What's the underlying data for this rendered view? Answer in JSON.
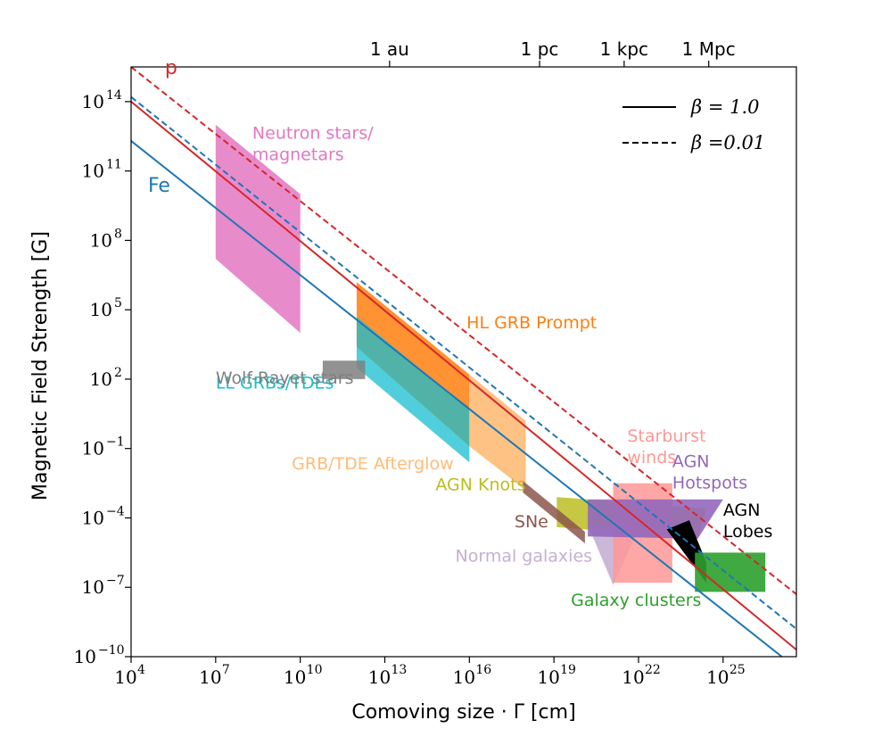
{
  "chart_data": {
    "type": "line",
    "xlabel": "Comoving size · Γ [cm]",
    "ylabel": "Magnetic Field Strength [G]",
    "x_scale": "log",
    "y_scale": "log",
    "xlim_log10": [
      4,
      27.6
    ],
    "ylim_log10": [
      -10,
      15.5
    ],
    "x_ticks": [
      {
        "exp": 4,
        "label": "4"
      },
      {
        "exp": 7,
        "label": "7"
      },
      {
        "exp": 10,
        "label": "10"
      },
      {
        "exp": 13,
        "label": "13"
      },
      {
        "exp": 16,
        "label": "16"
      },
      {
        "exp": 19,
        "label": "19"
      },
      {
        "exp": 22,
        "label": "22"
      },
      {
        "exp": 25,
        "label": "25"
      }
    ],
    "y_ticks": [
      {
        "exp": -10,
        "label": "−10"
      },
      {
        "exp": -7,
        "label": "−7"
      },
      {
        "exp": -4,
        "label": "−4"
      },
      {
        "exp": -1,
        "label": "−1"
      },
      {
        "exp": 2,
        "label": "2"
      },
      {
        "exp": 5,
        "label": "5"
      },
      {
        "exp": 8,
        "label": "8"
      },
      {
        "exp": 11,
        "label": "11"
      },
      {
        "exp": 14,
        "label": "14"
      }
    ],
    "top_axis": [
      {
        "label": "1 au",
        "log10_cm": 13.17
      },
      {
        "label": "1 pc",
        "log10_cm": 18.49
      },
      {
        "label": "1 kpc",
        "log10_cm": 21.49
      },
      {
        "label": "1 Mpc",
        "log10_cm": 24.49
      }
    ],
    "legend": {
      "placement": "top-right",
      "entries": [
        {
          "style": "solid",
          "label": "β = 1.0"
        },
        {
          "style": "dashed",
          "label": "β =0.01"
        }
      ]
    },
    "series": [
      {
        "label": "p",
        "color": "#d62728",
        "style": "solid",
        "x": [
          4,
          27.6
        ],
        "y": [
          14.0,
          -9.7
        ]
      },
      {
        "label": "p",
        "color": "#d62728",
        "style": "dashed",
        "x": [
          4,
          27.6
        ],
        "y": [
          15.5,
          -7.3
        ]
      },
      {
        "label": "Fe",
        "color": "#1f77b4",
        "style": "solid",
        "x": [
          4,
          27.6
        ],
        "y": [
          12.3,
          -10.5
        ]
      },
      {
        "label": "Fe",
        "color": "#1f77b4",
        "style": "dashed",
        "x": [
          4,
          27.6
        ],
        "y": [
          14.2,
          -8.8
        ]
      }
    ],
    "series_labels": [
      {
        "text": "p",
        "color": "#d62728",
        "x": 5.2,
        "y": 15.2
      },
      {
        "text": "Fe",
        "color": "#1f77b4",
        "x": 4.6,
        "y": 10.1
      }
    ],
    "regions": [
      {
        "label": "Neutron stars/\nmagnetars",
        "color": "#e377c2",
        "opacity": 0.85,
        "polygon": [
          [
            7,
            13
          ],
          [
            10,
            10
          ],
          [
            10,
            4
          ],
          [
            7,
            7.2
          ]
        ],
        "label_pos": [
          8.3,
          12.4
        ],
        "label_color": "#e377c2"
      },
      {
        "label": "HL GRB Prompt",
        "color": "#ff7f0e",
        "opacity": 0.85,
        "polygon": [
          [
            12,
            6.2
          ],
          [
            16,
            2.2
          ],
          [
            16,
            -0.9
          ],
          [
            12,
            3.4
          ]
        ],
        "label_pos": [
          15.9,
          4.2
        ],
        "label_color": "#ff7f0e"
      },
      {
        "label": "LL GRBs/TDEs",
        "color": "#17becf",
        "opacity": 0.75,
        "polygon": [
          [
            12,
            4.7
          ],
          [
            16,
            0.7
          ],
          [
            16,
            -1.6
          ],
          [
            12,
            2.5
          ]
        ],
        "label_pos": [
          7,
          1.6
        ],
        "label_color": "#17becf"
      },
      {
        "label": "GRB/TDE Afterglow",
        "color": "#ffbb78",
        "opacity": 0.9,
        "polygon": [
          [
            16,
            2.2
          ],
          [
            18,
            0.2
          ],
          [
            18,
            -2.8
          ],
          [
            16,
            -0.9
          ]
        ],
        "label_pos": [
          9.7,
          -1.9
        ],
        "label_color": "#ffbb78"
      },
      {
        "label": "Wolf-Rayet stars",
        "color": "#7f7f7f",
        "opacity": 0.85,
        "polygon": [
          [
            10.8,
            2.8
          ],
          [
            12.3,
            2.8
          ],
          [
            12.3,
            2.0
          ],
          [
            10.8,
            2.0
          ]
        ],
        "label_pos": [
          7,
          1.8
        ],
        "label_color": "#7f7f7f"
      },
      {
        "label": "AGN Knots",
        "color": "#bcbd22",
        "opacity": 0.85,
        "polygon": [
          [
            19.1,
            -3.1
          ],
          [
            24.4,
            -3.6
          ],
          [
            24.1,
            -4.9
          ],
          [
            19.1,
            -4.4
          ]
        ],
        "label_pos": [
          14.8,
          -2.8
        ],
        "label_color": "#bcbd22"
      },
      {
        "label": "SNe",
        "color": "#8c564b",
        "opacity": 0.85,
        "polygon": [
          [
            17.9,
            -2.4
          ],
          [
            20.1,
            -4.6
          ],
          [
            20.1,
            -5.1
          ],
          [
            17.9,
            -2.9
          ]
        ],
        "label_pos": [
          17.6,
          -4.4
        ],
        "label_color": "#8c564b"
      },
      {
        "label": "Normal galaxies",
        "color": "#c5b0d5",
        "opacity": 0.9,
        "polygon": [
          [
            20.2,
            -4.3
          ],
          [
            22.0,
            -4.5
          ],
          [
            21.1,
            -6.9
          ]
        ],
        "label_pos": [
          15.5,
          -5.9
        ],
        "label_color": "#c5b0d5"
      },
      {
        "label": "Starburst\nwinds",
        "color": "#ff9896",
        "opacity": 0.85,
        "polygon": [
          [
            21.1,
            -2.5
          ],
          [
            23.2,
            -2.5
          ],
          [
            23.2,
            -6.8
          ],
          [
            21.1,
            -6.8
          ]
        ],
        "label_pos": [
          21.6,
          -0.7
        ],
        "label_color": "#ff9896"
      },
      {
        "label": "AGN\nHotspots",
        "color": "#9467bd",
        "opacity": 0.9,
        "polygon": [
          [
            20.2,
            -3.2
          ],
          [
            25.0,
            -3.2
          ],
          [
            24.1,
            -4.9
          ],
          [
            20.2,
            -4.8
          ]
        ],
        "label_pos": [
          23.2,
          -1.8
        ],
        "label_color": "#9467bd"
      },
      {
        "label": "AGN\nLobes",
        "color": "#000000",
        "opacity": 1,
        "polygon": [
          [
            23.0,
            -4.5
          ],
          [
            23.8,
            -4.1
          ],
          [
            24.4,
            -5.9
          ],
          [
            24.4,
            -6.8
          ]
        ],
        "label_pos": [
          25.0,
          -3.9
        ],
        "label_color": "#000000"
      },
      {
        "label": "Galaxy clusters",
        "color": "#2ca02c",
        "opacity": 0.9,
        "polygon": [
          [
            24.0,
            -5.5
          ],
          [
            26.5,
            -5.5
          ],
          [
            26.5,
            -7.2
          ],
          [
            24.0,
            -7.2
          ]
        ],
        "label_pos": [
          19.6,
          -7.8
        ],
        "label_color": "#2ca02c"
      }
    ]
  }
}
